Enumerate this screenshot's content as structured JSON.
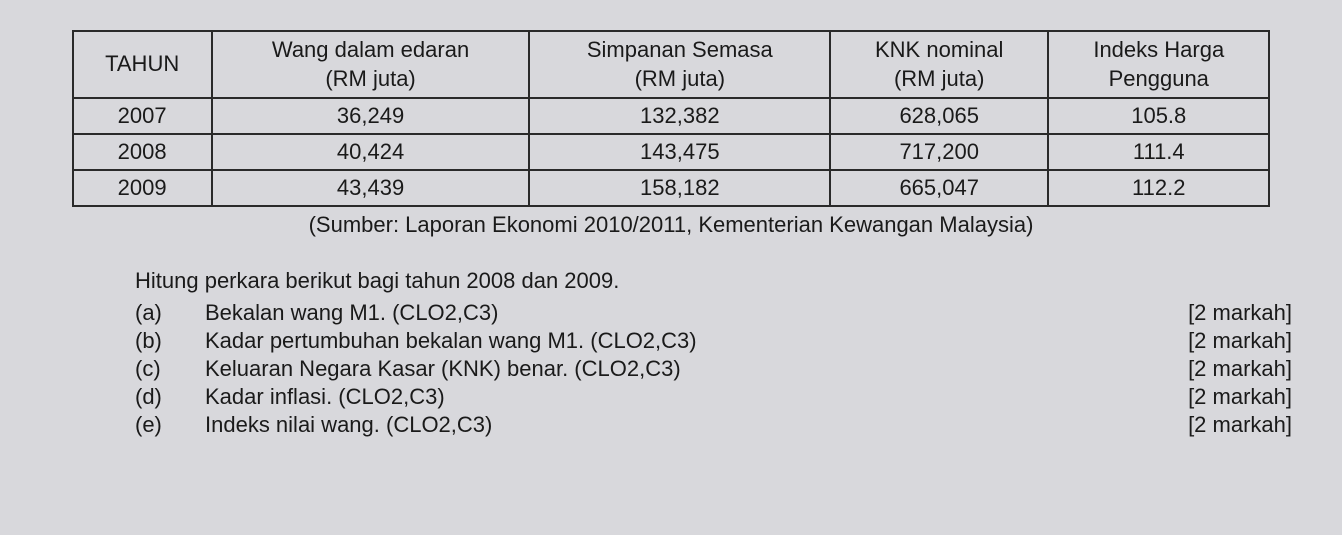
{
  "table": {
    "headers": [
      "TAHUN",
      "Wang dalam edaran\n(RM juta)",
      "Simpanan Semasa\n(RM juta)",
      "KNK nominal\n(RM juta)",
      "Indeks Harga\nPengguna"
    ],
    "rows": [
      [
        "2007",
        "36,249",
        "132,382",
        "628,065",
        "105.8"
      ],
      [
        "2008",
        "40,424",
        "143,475",
        "717,200",
        "111.4"
      ],
      [
        "2009",
        "43,439",
        "158,182",
        "665,047",
        "112.2"
      ]
    ]
  },
  "source": "(Sumber: Laporan Ekonomi 2010/2011, Kementerian Kewangan Malaysia)",
  "instruction": "Hitung perkara berikut bagi tahun 2008 dan 2009.",
  "questions": [
    {
      "label": "(a)",
      "text": "Bekalan wang M1. (CLO2,C3)",
      "marks": "[2 markah]"
    },
    {
      "label": "(b)",
      "text": "Kadar pertumbuhan bekalan wang M1. (CLO2,C3)",
      "marks": "[2 markah]"
    },
    {
      "label": "(c)",
      "text": "Keluaran Negara Kasar (KNK) benar. (CLO2,C3)",
      "marks": "[2 markah]"
    },
    {
      "label": "(d)",
      "text": "Kadar inflasi. (CLO2,C3)",
      "marks": "[2 markah]"
    },
    {
      "label": "(e)",
      "text": "Indeks nilai wang. (CLO2,C3)",
      "marks": "[2 markah]"
    }
  ]
}
